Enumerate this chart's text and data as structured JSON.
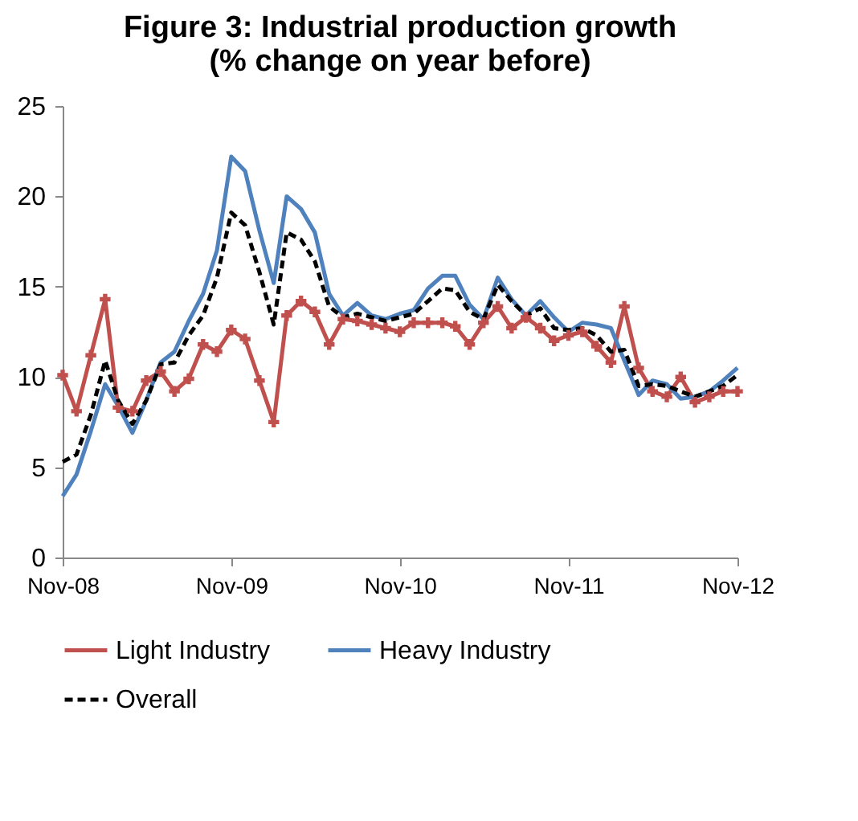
{
  "chart_data": {
    "type": "line",
    "title": "Figure 3: Industrial production growth",
    "subtitle": "(% change on year before)",
    "x": [
      "2008-11",
      "2008-12",
      "2009-01",
      "2009-02",
      "2009-03",
      "2009-04",
      "2009-05",
      "2009-06",
      "2009-07",
      "2009-08",
      "2009-09",
      "2009-10",
      "2009-11",
      "2009-12",
      "2010-01",
      "2010-02",
      "2010-03",
      "2010-04",
      "2010-05",
      "2010-06",
      "2010-07",
      "2010-08",
      "2010-09",
      "2010-10",
      "2010-11",
      "2010-12",
      "2011-01",
      "2011-02",
      "2011-03",
      "2011-04",
      "2011-05",
      "2011-06",
      "2011-07",
      "2011-08",
      "2011-09",
      "2011-10",
      "2011-11",
      "2011-12",
      "2012-01",
      "2012-02",
      "2012-03",
      "2012-04",
      "2012-05",
      "2012-06",
      "2012-07",
      "2012-08",
      "2012-09",
      "2012-10",
      "2012-11"
    ],
    "series": [
      {
        "name": "Light Industry",
        "color": "#c0504d",
        "marker": "cross",
        "line_style": "solid",
        "values": [
          10.1,
          8.1,
          11.2,
          14.3,
          8.3,
          8.1,
          9.8,
          10.3,
          9.2,
          9.9,
          11.8,
          11.4,
          12.6,
          12.1,
          9.8,
          7.5,
          13.4,
          14.2,
          13.6,
          11.8,
          13.2,
          13.1,
          12.9,
          12.7,
          12.5,
          13.0,
          13.0,
          13.0,
          12.8,
          11.8,
          13.0,
          13.9,
          12.7,
          13.3,
          12.7,
          12.0,
          12.3,
          12.5,
          11.7,
          10.8,
          13.9,
          10.5,
          9.2,
          8.9,
          10.0,
          8.6,
          8.9,
          9.2,
          9.2
        ]
      },
      {
        "name": "Heavy Industry",
        "color": "#4f81bd",
        "marker": "none",
        "line_style": "solid",
        "values": [
          3.4,
          4.6,
          7.0,
          9.6,
          8.4,
          6.9,
          8.7,
          10.8,
          11.4,
          13.1,
          14.6,
          17.0,
          22.2,
          21.4,
          18.1,
          15.2,
          20.0,
          19.3,
          18.0,
          14.6,
          13.4,
          14.1,
          13.4,
          13.2,
          13.5,
          13.7,
          14.9,
          15.6,
          15.6,
          14.0,
          13.2,
          15.5,
          14.3,
          13.4,
          14.2,
          13.3,
          12.5,
          13.0,
          12.9,
          12.7,
          10.9,
          9.0,
          9.8,
          9.6,
          8.8,
          8.9,
          9.2,
          9.8,
          10.5
        ]
      },
      {
        "name": "Overall",
        "color": "#000000",
        "marker": "none",
        "line_style": "dashed",
        "values": [
          5.3,
          5.7,
          7.9,
          10.9,
          8.7,
          7.4,
          8.7,
          10.7,
          10.8,
          12.3,
          13.4,
          15.5,
          19.1,
          18.4,
          15.8,
          12.9,
          18.0,
          17.6,
          16.4,
          13.9,
          13.3,
          13.5,
          13.3,
          13.1,
          13.3,
          13.5,
          14.2,
          14.9,
          14.8,
          13.6,
          13.2,
          15.1,
          14.2,
          13.4,
          13.8,
          12.7,
          12.6,
          12.7,
          12.3,
          11.4,
          11.5,
          9.5,
          9.6,
          9.5,
          9.2,
          8.9,
          9.2,
          9.5,
          10.1
        ]
      }
    ],
    "xlim": [
      "2008-11",
      "2012-11"
    ],
    "xticks": [
      {
        "value": "2008-11",
        "label": "Nov-08"
      },
      {
        "value": "2009-11",
        "label": "Nov-09"
      },
      {
        "value": "2010-11",
        "label": "Nov-10"
      },
      {
        "value": "2011-11",
        "label": "Nov-11"
      },
      {
        "value": "2012-11",
        "label": "Nov-12"
      }
    ],
    "ylim": [
      0,
      25
    ],
    "yticks": [
      0,
      5,
      10,
      15,
      20,
      25
    ],
    "grid": false,
    "legend": "bottom"
  }
}
